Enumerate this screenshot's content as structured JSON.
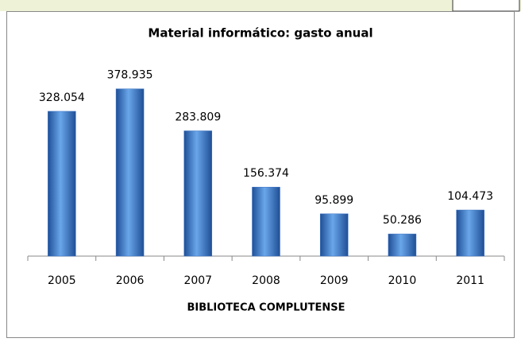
{
  "chart_data": {
    "type": "bar",
    "title": "Material informático: gasto anual",
    "x_label": "BIBLIOTECA COMPLUTENSE",
    "categories": [
      "2005",
      "2006",
      "2007",
      "2008",
      "2009",
      "2010",
      "2011"
    ],
    "values": [
      328054,
      378935,
      283809,
      156374,
      95899,
      50286,
      104473
    ],
    "value_labels": [
      "328.054",
      "378.935",
      "283.809",
      "156.374",
      "95.899",
      "50.286",
      "104.473"
    ],
    "color": "#3a72c4",
    "ylim": [
      0,
      400000
    ]
  }
}
